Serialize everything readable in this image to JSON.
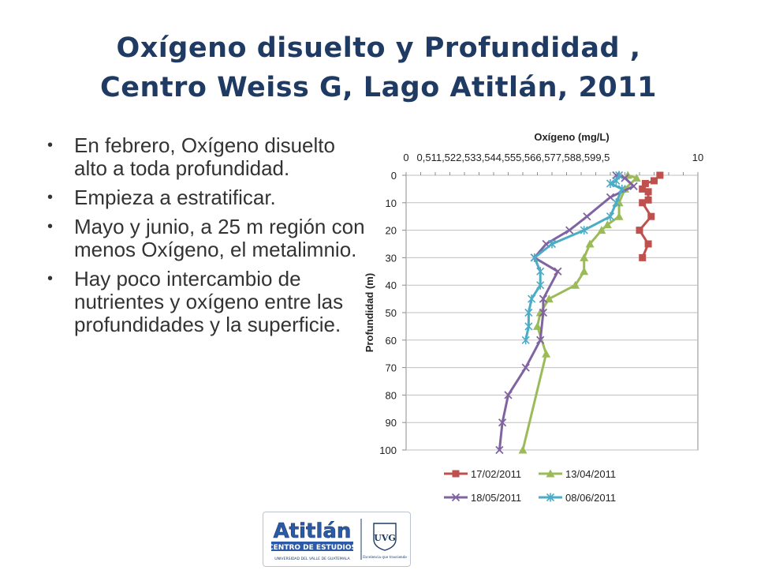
{
  "slide": {
    "title_line1": "Oxígeno disuelto y Profundidad ,",
    "title_line2": "Centro Weiss G, Lago Atitlán, 2011",
    "bullets": [
      "En febrero, Oxígeno disuelto alto a toda profundidad.",
      "Empieza a estratificar.",
      "Mayo y junio, a 25 m región con menos Oxígeno, el metalimnio.",
      "Hay poco intercambio de nutrientes y oxígeno entre las profundidades y la superficie."
    ],
    "bullet_symbol": "•"
  },
  "logo": {
    "name": "Atitlán",
    "subtitle": "CENTRO DE ESTUDIOS",
    "university": "UNIVERSIDAD DEL VALLE DE GUATEMALA",
    "seal_text": "UVG",
    "seal_caption": "Excelencia que trasciende",
    "colors": {
      "blue": "#2a5aa8",
      "navy": "#1f3b63"
    }
  },
  "chart_data": {
    "type": "line",
    "orientation": "depth-profile",
    "title": "Oxígeno (mg/L)",
    "xlabel": "",
    "ylabel": "Profundidad (m)",
    "xlim": [
      0,
      10
    ],
    "ylim": [
      0,
      100
    ],
    "y_inverted": true,
    "x_axis_position": "top",
    "x_tick_labels": [
      "0",
      "0,5",
      "1",
      "1,5",
      "2",
      "2,5",
      "3",
      "3,5",
      "4",
      "4,5",
      "5",
      "5,5",
      "6",
      "6,5",
      "7",
      "7,5",
      "8",
      "8,5",
      "9",
      "9,5",
      "10"
    ],
    "y_ticks": [
      0,
      10,
      20,
      30,
      40,
      50,
      60,
      70,
      80,
      90,
      100
    ],
    "grid": true,
    "legend_position": "bottom",
    "series": [
      {
        "name": "17/02/2011",
        "color": "#c0504d",
        "marker": "square",
        "points": [
          [
            8.7,
            0
          ],
          [
            8.5,
            2
          ],
          [
            8.2,
            3
          ],
          [
            8.1,
            5
          ],
          [
            8.3,
            6
          ],
          [
            8.3,
            9
          ],
          [
            8.1,
            10
          ],
          [
            8.4,
            15
          ],
          [
            8.0,
            20
          ],
          [
            8.3,
            25
          ],
          [
            8.1,
            30
          ]
        ]
      },
      {
        "name": "13/04/2011",
        "color": "#9bbb59",
        "marker": "triangle",
        "points": [
          [
            7.6,
            0
          ],
          [
            7.9,
            1
          ],
          [
            7.5,
            5
          ],
          [
            7.3,
            10
          ],
          [
            7.3,
            15
          ],
          [
            6.9,
            18
          ],
          [
            6.7,
            20
          ],
          [
            6.3,
            25
          ],
          [
            6.1,
            30
          ],
          [
            6.1,
            35
          ],
          [
            5.8,
            40
          ],
          [
            4.9,
            45
          ],
          [
            4.6,
            50
          ],
          [
            4.5,
            55
          ],
          [
            4.8,
            65
          ],
          [
            4.0,
            100
          ]
        ]
      },
      {
        "name": "18/05/2011",
        "color": "#8064a2",
        "marker": "x",
        "points": [
          [
            7.2,
            0
          ],
          [
            7.5,
            1
          ],
          [
            7.8,
            4
          ],
          [
            7.0,
            8
          ],
          [
            6.2,
            15
          ],
          [
            5.6,
            20
          ],
          [
            4.8,
            25
          ],
          [
            4.4,
            30
          ],
          [
            5.2,
            35
          ],
          [
            4.7,
            45
          ],
          [
            4.7,
            50
          ],
          [
            4.6,
            60
          ],
          [
            4.1,
            70
          ],
          [
            3.5,
            80
          ],
          [
            3.3,
            90
          ],
          [
            3.2,
            100
          ]
        ]
      },
      {
        "name": "08/06/2011",
        "color": "#4bacc6",
        "marker": "star",
        "points": [
          [
            7.3,
            0
          ],
          [
            7.2,
            2
          ],
          [
            7.0,
            3
          ],
          [
            7.4,
            5
          ],
          [
            7.2,
            10
          ],
          [
            7.0,
            15
          ],
          [
            6.1,
            20
          ],
          [
            5.0,
            25
          ],
          [
            4.4,
            30
          ],
          [
            4.6,
            35
          ],
          [
            4.6,
            40
          ],
          [
            4.3,
            45
          ],
          [
            4.2,
            50
          ],
          [
            4.2,
            55
          ],
          [
            4.1,
            60
          ]
        ]
      }
    ],
    "colors": {
      "grid": "#bfbfbf",
      "axis_text": "#222222"
    }
  }
}
